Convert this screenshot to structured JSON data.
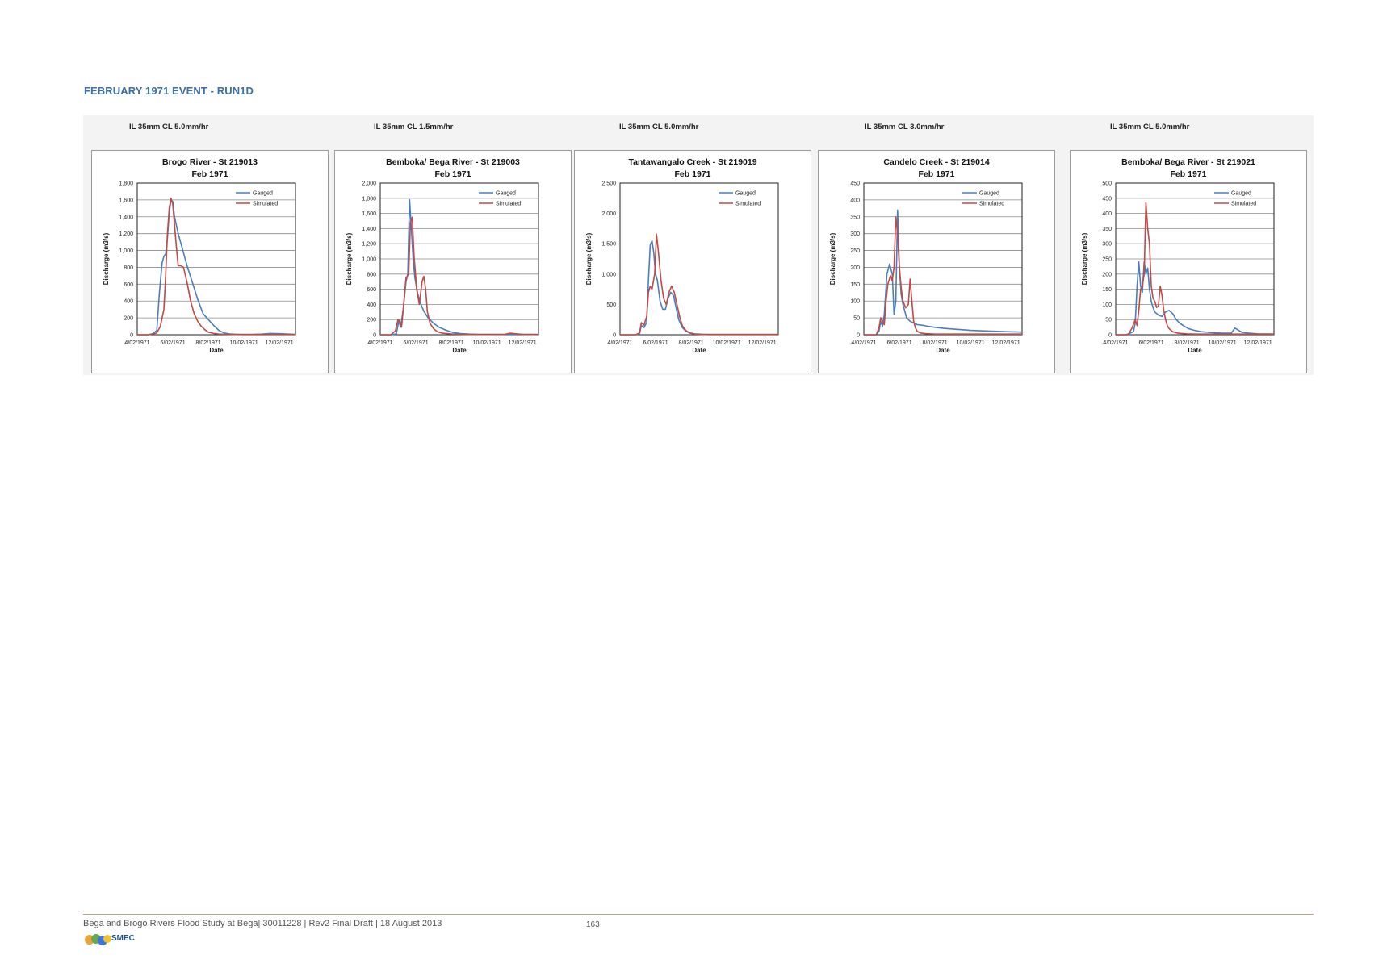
{
  "heading": "FEBRUARY 1971 EVENT - RUN1D",
  "captions": [
    "IL 35mm CL 5.0mm/hr",
    "IL 35mm CL 1.5mm/hr",
    "IL 35mm CL 5.0mm/hr",
    "IL 35mm CL 3.0mm/hr",
    "IL 35mm CL 5.0mm/hr"
  ],
  "footer": {
    "text": "Bega and Brogo Rivers Flood Study at Bega| 30011228 | Rev2 Final Draft | 18 August 2013",
    "page": "163",
    "logo_text": "SMEC"
  },
  "colors": {
    "gauged": "#4a7ebb",
    "simulated": "#be4b48",
    "heading": "#3c6ea8"
  },
  "chart_data": [
    {
      "type": "line",
      "title": "Brogo River - St 219013",
      "subtitle": "Feb 1971",
      "xlabel": "Date",
      "ylabel": "Discharge (m3/s)",
      "xlim": [
        4,
        12.9
      ],
      "ylim": [
        0,
        1800
      ],
      "yticks": [
        "0",
        "200",
        "400",
        "600",
        "800",
        "1,000",
        "1,200",
        "1,400",
        "1,600",
        "1,800"
      ],
      "xticks": [
        "4/02/1971",
        "6/02/1971",
        "8/02/1971",
        "10/02/1971",
        "12/02/1971"
      ],
      "grid": true,
      "legend": "top-right",
      "series": [
        {
          "name": "Gauged",
          "x": [
            4,
            4.6,
            4.85,
            5.1,
            5.25,
            5.4,
            5.5,
            5.6,
            5.7,
            5.8,
            5.9,
            6.0,
            6.1,
            6.3,
            6.5,
            6.8,
            7.1,
            7.4,
            7.7,
            8.0,
            8.3,
            8.6,
            8.9,
            9.2,
            9.6,
            10,
            10.5,
            11,
            11.5,
            12,
            12.9
          ],
          "y": [
            0,
            0,
            10,
            50,
            500,
            850,
            930,
            960,
            1150,
            1450,
            1600,
            1580,
            1400,
            1200,
            1050,
            820,
            620,
            420,
            250,
            180,
            110,
            50,
            20,
            10,
            5,
            5,
            5,
            8,
            15,
            12,
            5
          ]
        },
        {
          "name": "Simulated",
          "x": [
            4,
            4.6,
            4.85,
            5.1,
            5.3,
            5.5,
            5.6,
            5.7,
            5.8,
            5.9,
            6.0,
            6.1,
            6.2,
            6.3,
            6.45,
            6.6,
            6.8,
            7.0,
            7.2,
            7.4,
            7.6,
            7.8,
            8.0,
            8.3,
            8.6,
            9,
            9.5,
            10,
            11,
            12,
            12.9
          ],
          "y": [
            0,
            0,
            10,
            20,
            100,
            300,
            700,
            1200,
            1500,
            1620,
            1550,
            1300,
            1050,
            820,
            820,
            800,
            620,
            400,
            250,
            160,
            100,
            60,
            30,
            15,
            8,
            5,
            3,
            2,
            2,
            2,
            2
          ]
        }
      ]
    },
    {
      "type": "line",
      "title": "Bemboka/ Bega River - St 219003",
      "subtitle": "Feb 1971",
      "xlabel": "Date",
      "ylabel": "Discharge (m3/s)",
      "xlim": [
        4,
        12.9
      ],
      "ylim": [
        0,
        2000
      ],
      "yticks": [
        "0",
        "200",
        "400",
        "600",
        "800",
        "1,000",
        "1,200",
        "1,400",
        "1,600",
        "1,800",
        "2,000"
      ],
      "xticks": [
        "4/02/1971",
        "6/02/1971",
        "8/02/1971",
        "10/02/1971",
        "12/02/1971"
      ],
      "grid": true,
      "legend": "top-right",
      "series": [
        {
          "name": "Gauged",
          "x": [
            4,
            4.6,
            4.9,
            5.05,
            5.15,
            5.3,
            5.45,
            5.55,
            5.65,
            5.75,
            5.85,
            5.95,
            6.1,
            6.25,
            6.45,
            6.7,
            7,
            7.3,
            7.7,
            8.1,
            8.5,
            9,
            9.5,
            10,
            11,
            12,
            12.9
          ],
          "y": [
            0,
            0,
            10,
            180,
            100,
            350,
            700,
            800,
            1780,
            1400,
            1000,
            750,
            550,
            420,
            310,
            220,
            150,
            100,
            60,
            30,
            15,
            8,
            5,
            5,
            5,
            5,
            5
          ]
        },
        {
          "name": "Simulated",
          "x": [
            4,
            4.6,
            4.85,
            5.0,
            5.1,
            5.2,
            5.3,
            5.45,
            5.6,
            5.7,
            5.8,
            5.9,
            6.05,
            6.2,
            6.35,
            6.45,
            6.55,
            6.65,
            6.8,
            7.0,
            7.2,
            7.5,
            8,
            8.5,
            9,
            10,
            11,
            11.3,
            12,
            12.9
          ],
          "y": [
            0,
            0,
            50,
            200,
            180,
            100,
            350,
            750,
            800,
            1480,
            1550,
            1050,
            600,
            400,
            700,
            770,
            600,
            300,
            150,
            80,
            40,
            20,
            10,
            5,
            3,
            3,
            5,
            20,
            5,
            2
          ]
        }
      ]
    },
    {
      "type": "line",
      "title": "Tantawangalo Creek - St 219019",
      "subtitle": "Feb 1971",
      "xlabel": "Date",
      "ylabel": "Discharge (m3/s)",
      "xlim": [
        4,
        12.9
      ],
      "ylim": [
        0,
        2500
      ],
      "yticks": [
        "0",
        "500",
        "1,000",
        "1,500",
        "2,000",
        "2,500"
      ],
      "xticks": [
        "4/02/1971",
        "6/02/1971",
        "8/02/1971",
        "10/02/1971",
        "12/02/1971"
      ],
      "grid": false,
      "legend": "top-right",
      "series": [
        {
          "name": "Gauged",
          "x": [
            4,
            4.9,
            5.1,
            5.2,
            5.35,
            5.5,
            5.6,
            5.7,
            5.8,
            5.9,
            6.0,
            6.1,
            6.25,
            6.4,
            6.55,
            6.7,
            6.85,
            7.0,
            7.15,
            7.3,
            7.5,
            7.7,
            7.9,
            8.2,
            8.6,
            9,
            10,
            11,
            12.9
          ],
          "y": [
            0,
            0,
            20,
            150,
            120,
            200,
            900,
            1480,
            1550,
            1350,
            1000,
            900,
            550,
            420,
            420,
            600,
            700,
            650,
            450,
            250,
            120,
            60,
            30,
            15,
            8,
            5,
            5,
            5,
            5
          ]
        },
        {
          "name": "Simulated",
          "x": [
            4,
            4.9,
            5.1,
            5.2,
            5.35,
            5.5,
            5.6,
            5.7,
            5.8,
            5.95,
            6.05,
            6.15,
            6.3,
            6.45,
            6.6,
            6.75,
            6.9,
            7.05,
            7.2,
            7.35,
            7.5,
            7.7,
            7.9,
            8.2,
            8.6,
            9,
            10,
            11,
            12.9
          ],
          "y": [
            0,
            0,
            30,
            200,
            160,
            300,
            700,
            800,
            750,
            1000,
            1660,
            1400,
            900,
            600,
            500,
            700,
            800,
            700,
            500,
            300,
            150,
            70,
            30,
            10,
            5,
            3,
            2,
            2,
            2
          ]
        }
      ]
    },
    {
      "type": "line",
      "title": "Candelo Creek - St 219014",
      "subtitle": "Feb 1971",
      "xlabel": "Date",
      "ylabel": "Discharge (m3/s)",
      "xlim": [
        4,
        12.9
      ],
      "ylim": [
        0,
        450
      ],
      "yticks": [
        "0",
        "50",
        "100",
        "150",
        "200",
        "250",
        "300",
        "350",
        "400",
        "450"
      ],
      "xticks": [
        "4/02/1971",
        "6/02/1971",
        "8/02/1971",
        "10/02/1971",
        "12/02/1971"
      ],
      "grid": true,
      "legend": "top-right",
      "series": [
        {
          "name": "Gauged",
          "x": [
            4,
            4.7,
            4.85,
            4.95,
            5.05,
            5.15,
            5.3,
            5.45,
            5.6,
            5.7,
            5.8,
            5.9,
            6.0,
            6.1,
            6.2,
            6.3,
            6.4,
            6.6,
            6.8,
            7.0,
            7.3,
            7.6,
            8,
            8.5,
            9,
            9.5,
            10,
            11,
            12,
            12.9
          ],
          "y": [
            0,
            0,
            10,
            40,
            25,
            60,
            180,
            210,
            180,
            60,
            100,
            370,
            200,
            120,
            90,
            70,
            50,
            40,
            35,
            30,
            28,
            25,
            22,
            19,
            17,
            15,
            13,
            11,
            9,
            8
          ]
        },
        {
          "name": "Simulated",
          "x": [
            4,
            4.7,
            4.85,
            4.95,
            5.05,
            5.15,
            5.25,
            5.35,
            5.5,
            5.6,
            5.7,
            5.8,
            5.9,
            6.0,
            6.1,
            6.2,
            6.35,
            6.5,
            6.6,
            6.7,
            6.8,
            6.9,
            7.0,
            7.2,
            7.5,
            8,
            8.5,
            9,
            10,
            11,
            12.9
          ],
          "y": [
            0,
            0,
            20,
            50,
            40,
            30,
            100,
            150,
            175,
            160,
            200,
            350,
            300,
            200,
            140,
            100,
            80,
            90,
            165,
            100,
            40,
            20,
            10,
            5,
            3,
            2,
            2,
            2,
            2,
            2,
            2
          ]
        }
      ]
    },
    {
      "type": "line",
      "title": "Bemboka/ Bega River - St 219021",
      "subtitle": "Feb 1971",
      "xlabel": "Date",
      "ylabel": "Discharge (m3/s)",
      "xlim": [
        4,
        12.9
      ],
      "ylim": [
        0,
        500
      ],
      "yticks": [
        "0",
        "50",
        "100",
        "150",
        "200",
        "250",
        "300",
        "350",
        "400",
        "450",
        "500"
      ],
      "xticks": [
        "4/02/1971",
        "6/02/1971",
        "8/02/1971",
        "10/02/1971",
        "12/02/1971"
      ],
      "grid": true,
      "legend": "top-right",
      "series": [
        {
          "name": "Gauged",
          "x": [
            4,
            4.6,
            4.8,
            5.0,
            5.1,
            5.2,
            5.3,
            5.4,
            5.5,
            5.6,
            5.7,
            5.8,
            5.9,
            6.0,
            6.1,
            6.2,
            6.4,
            6.6,
            6.8,
            7.0,
            7.2,
            7.4,
            7.6,
            7.8,
            8.1,
            8.4,
            8.8,
            9.2,
            9.6,
            10,
            10.5,
            10.7,
            10.9,
            11.1,
            11.5,
            12,
            12.9
          ],
          "y": [
            0,
            0,
            5,
            10,
            40,
            160,
            240,
            160,
            140,
            240,
            200,
            220,
            150,
            110,
            90,
            75,
            65,
            60,
            75,
            80,
            70,
            50,
            38,
            30,
            20,
            15,
            10,
            8,
            6,
            5,
            5,
            22,
            15,
            8,
            5,
            3,
            2
          ]
        },
        {
          "name": "Simulated",
          "x": [
            4,
            4.7,
            4.9,
            5.1,
            5.2,
            5.3,
            5.4,
            5.5,
            5.6,
            5.7,
            5.8,
            5.9,
            6.0,
            6.1,
            6.2,
            6.3,
            6.4,
            6.5,
            6.6,
            6.7,
            6.8,
            6.9,
            7.0,
            7.2,
            7.5,
            8,
            8.5,
            9,
            10,
            11,
            12,
            12.9
          ],
          "y": [
            0,
            0,
            20,
            50,
            30,
            80,
            150,
            160,
            200,
            435,
            350,
            300,
            160,
            120,
            110,
            90,
            95,
            160,
            130,
            80,
            50,
            30,
            20,
            10,
            5,
            3,
            2,
            2,
            2,
            2,
            2,
            2
          ]
        }
      ]
    }
  ]
}
